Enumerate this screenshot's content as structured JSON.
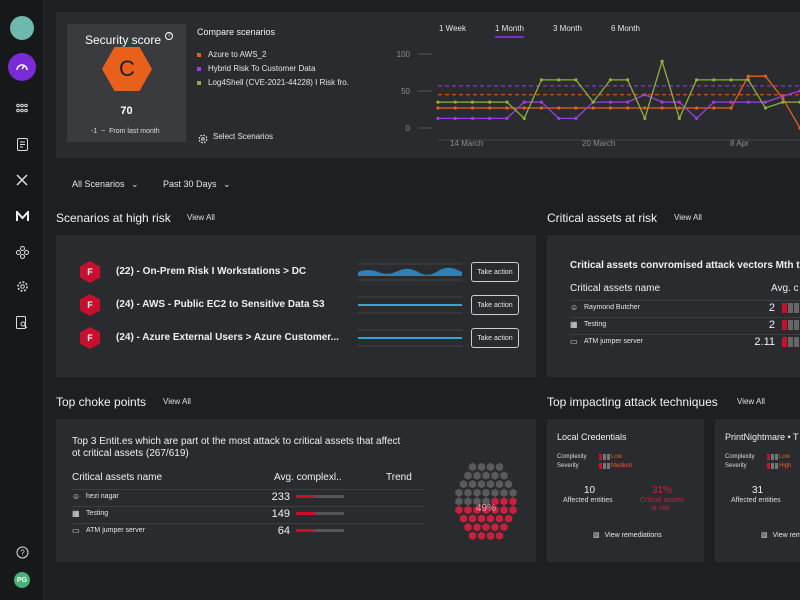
{
  "security_score": {
    "title": "Security score",
    "grade": "C",
    "value": "70",
    "change": "-1",
    "change_label": "From last month",
    "color": "#e8601c"
  },
  "compare": {
    "title": "Compare scenarios",
    "items": [
      {
        "label": "Azure to AWS_2",
        "color": "#e8601c"
      },
      {
        "label": "Hybrid Risk To Customer Data",
        "color": "#9b3fe0"
      },
      {
        "label": "Log4Shell (CVE-2021-44228) I Risk fro.",
        "color": "#8fb03a"
      }
    ],
    "select_label": "Select Scenarios"
  },
  "time_tabs": [
    "1 Week",
    "1 Month",
    "3 Month",
    "6 Month"
  ],
  "chart_data": {
    "type": "line",
    "yticks": [
      "100",
      "50",
      "0"
    ],
    "ylim": [
      0,
      100
    ],
    "xticks": [
      "14 March",
      "20 March",
      "8 Apr"
    ],
    "series": [
      {
        "name": "Azure to AWS_2",
        "color": "#e8601c",
        "values": [
          27,
          27,
          27,
          27,
          27,
          27,
          27,
          27,
          27,
          27,
          27,
          27,
          27,
          27,
          27,
          27,
          27,
          27,
          70,
          70,
          40,
          0
        ]
      },
      {
        "name": "Hybrid Risk To Customer Data",
        "color": "#9b3fe0",
        "values": [
          13,
          13,
          13,
          13,
          13,
          35,
          35,
          13,
          13,
          35,
          35,
          35,
          45,
          35,
          35,
          13,
          35,
          35,
          35,
          35,
          43,
          50
        ]
      },
      {
        "name": "Log4Shell (CVE-2021-44228) I Risk fro.",
        "color": "#8fb03a",
        "values": [
          35,
          35,
          35,
          35,
          35,
          13,
          65,
          65,
          65,
          35,
          65,
          65,
          13,
          90,
          13,
          65,
          65,
          65,
          65,
          27,
          35,
          35
        ]
      }
    ],
    "averages": [
      {
        "color": "#9b3fe0",
        "value": 57
      },
      {
        "color": "#e8601c",
        "value": 45
      }
    ]
  },
  "filters": {
    "scenarios": "All Scenarios",
    "range": "Past 30 Days"
  },
  "high_risk": {
    "title": "Scenarios at high risk",
    "view_all": "View All",
    "rows": [
      {
        "grade": "F",
        "label": "(22) - On-Prem Risk I Workstations > DC",
        "action": "Take action"
      },
      {
        "grade": "F",
        "label": "(24) - AWS - Public EC2 to Sensitive Data S3",
        "action": "Take action"
      },
      {
        "grade": "F",
        "label": "(24) - Azure External Users > Azure Customer...",
        "action": "Take action"
      }
    ]
  },
  "critical_assets": {
    "title": "Critical assets at risk",
    "view_all": "View All",
    "subtitle": "Critical assets convromised attack vectors Mth t",
    "col_name": "Critical assets name",
    "col_avg": "Avg. c",
    "rows": [
      {
        "name": "Raymond Butcher",
        "value": "2"
      },
      {
        "name": "Testing",
        "value": "2"
      },
      {
        "name": "ATM jumper server",
        "value": "2.11"
      }
    ]
  },
  "choke_points": {
    "title": "Top choke points",
    "view_all": "View All",
    "subtitle_line1": "Top 3 Entit.es which are part ot the most attack to critical assets that affect",
    "subtitle_line2": "ot critical assets (267/619)",
    "col_name": "Critical assets name",
    "col_avg": "Avg. complexl..",
    "col_trend": "Trend",
    "rows": [
      {
        "name": "hezi nagar",
        "value": "233"
      },
      {
        "name": "Testing",
        "value": "149"
      },
      {
        "name": "ATM jumper server",
        "value": "64"
      }
    ],
    "honeycomb_pct": "49%",
    "honeycomb_fraction": 0.49
  },
  "techniques": {
    "title": "Top impacting attack techniques",
    "view_all": "View All",
    "complexity_label": "Complexity",
    "severity_label": "Severity",
    "affected_label": "Affected entities",
    "at_risk_label_1": "Critical assets",
    "at_risk_label_2": "at risk",
    "remediations_label": "View remediations",
    "cards": [
      {
        "name": "Local Credentials",
        "complexity": "Low",
        "severity": "Medium",
        "affected": "10",
        "at_risk": "31%"
      },
      {
        "name": "PrintNightmare • T",
        "complexity": "Low",
        "severity": "High",
        "affected": "31",
        "at_risk": ""
      }
    ]
  }
}
